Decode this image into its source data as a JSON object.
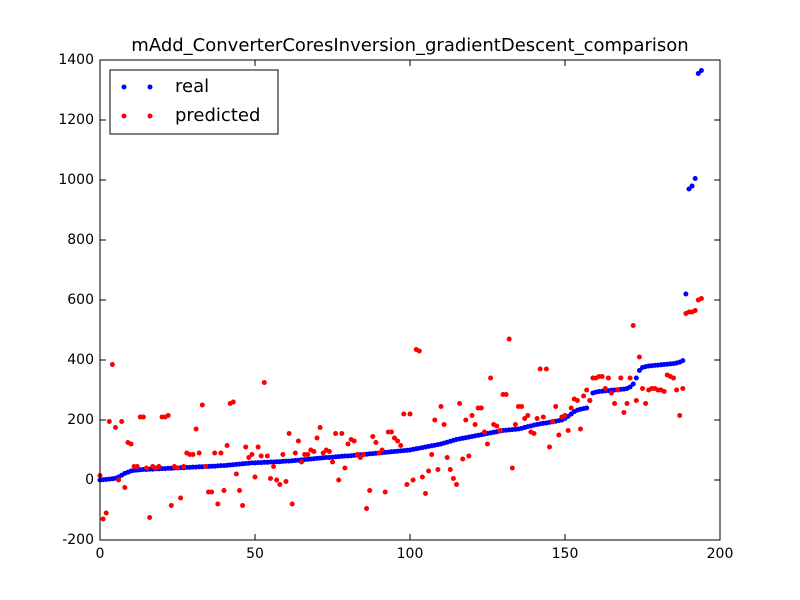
{
  "chart_data": {
    "type": "scatter",
    "title": "mAdd_ConverterCoresInversion_gradientDescent_comparison",
    "x": [
      0,
      1,
      2,
      3,
      4,
      5,
      6,
      7,
      8,
      9,
      10,
      11,
      12,
      13,
      14,
      15,
      16,
      17,
      18,
      19,
      20,
      21,
      22,
      23,
      24,
      25,
      26,
      27,
      28,
      29,
      30,
      31,
      32,
      33,
      34,
      35,
      36,
      37,
      38,
      39,
      40,
      41,
      42,
      43,
      44,
      45,
      46,
      47,
      48,
      49,
      50,
      51,
      52,
      53,
      54,
      55,
      56,
      57,
      58,
      59,
      60,
      61,
      62,
      63,
      64,
      65,
      66,
      67,
      68,
      69,
      70,
      71,
      72,
      73,
      74,
      75,
      76,
      77,
      78,
      79,
      80,
      81,
      82,
      83,
      84,
      85,
      86,
      87,
      88,
      89,
      90,
      91,
      92,
      93,
      94,
      95,
      96,
      97,
      98,
      99,
      100,
      101,
      102,
      103,
      104,
      105,
      106,
      107,
      108,
      109,
      110,
      111,
      112,
      113,
      114,
      115,
      116,
      117,
      118,
      119,
      120,
      121,
      122,
      123,
      124,
      125,
      126,
      127,
      128,
      129,
      130,
      131,
      132,
      133,
      134,
      135,
      136,
      137,
      138,
      139,
      140,
      141,
      142,
      143,
      144,
      145,
      146,
      147,
      148,
      149,
      150,
      151,
      152,
      153,
      154,
      155,
      156,
      157,
      158,
      159,
      160,
      161,
      162,
      163,
      164,
      165,
      166,
      167,
      168,
      169,
      170,
      171,
      172,
      173,
      174,
      175,
      176,
      177,
      178,
      179,
      180,
      181,
      182,
      183,
      184,
      185,
      186,
      187,
      188,
      189,
      190,
      191,
      192,
      193,
      194
    ],
    "series": [
      {
        "name": "real",
        "color": "#0000ff",
        "values": [
          0,
          1,
          2,
          3,
          4,
          6,
          10,
          16,
          22,
          26,
          30,
          32,
          33,
          34,
          35,
          35,
          36,
          36,
          37,
          37,
          38,
          38,
          39,
          39,
          40,
          40,
          41,
          41,
          42,
          42,
          43,
          43,
          44,
          44,
          45,
          45,
          46,
          46,
          47,
          48,
          48,
          49,
          50,
          51,
          52,
          53,
          54,
          55,
          56,
          57,
          57,
          58,
          58,
          59,
          59,
          60,
          60,
          61,
          61,
          62,
          63,
          63,
          64,
          65,
          66,
          67,
          68,
          69,
          70,
          71,
          72,
          73,
          74,
          75,
          75,
          76,
          77,
          78,
          79,
          80,
          80,
          81,
          82,
          83,
          84,
          85,
          86,
          87,
          88,
          89,
          90,
          91,
          92,
          93,
          94,
          95,
          96,
          97,
          98,
          99,
          100,
          102,
          104,
          106,
          108,
          110,
          112,
          114,
          116,
          118,
          120,
          123,
          126,
          129,
          132,
          135,
          137,
          139,
          141,
          143,
          145,
          147,
          149,
          151,
          153,
          155,
          157,
          159,
          161,
          163,
          165,
          166,
          167,
          168,
          169,
          170,
          172,
          175,
          178,
          180,
          183,
          185,
          187,
          189,
          190,
          192,
          194,
          196,
          198,
          200,
          205,
          212,
          220,
          228,
          233,
          236,
          238,
          240,
          265,
          290,
          293,
          295,
          296,
          297,
          298,
          299,
          300,
          301,
          302,
          303,
          305,
          310,
          320,
          340,
          365,
          375,
          378,
          380,
          381,
          382,
          383,
          384,
          385,
          386,
          387,
          388,
          390,
          393,
          398,
          620,
          970,
          980,
          1005,
          1355,
          1365
        ]
      },
      {
        "name": "predicted",
        "color": "#ff0000",
        "values": [
          15,
          -130,
          -110,
          195,
          385,
          175,
          0,
          195,
          -25,
          125,
          120,
          45,
          45,
          210,
          210,
          40,
          -125,
          45,
          40,
          45,
          210,
          210,
          215,
          -85,
          45,
          40,
          -60,
          45,
          90,
          85,
          85,
          170,
          90,
          250,
          45,
          -40,
          -40,
          90,
          -80,
          90,
          -35,
          115,
          255,
          260,
          20,
          -35,
          -85,
          110,
          75,
          85,
          10,
          110,
          80,
          325,
          80,
          5,
          45,
          0,
          -15,
          85,
          -5,
          155,
          -80,
          90,
          130,
          60,
          85,
          85,
          100,
          95,
          140,
          175,
          90,
          100,
          95,
          60,
          155,
          0,
          155,
          40,
          120,
          135,
          130,
          85,
          75,
          85,
          -95,
          -35,
          145,
          125,
          90,
          100,
          -40,
          160,
          160,
          140,
          130,
          115,
          220,
          -15,
          220,
          0,
          435,
          430,
          10,
          -45,
          30,
          85,
          200,
          35,
          245,
          185,
          75,
          35,
          5,
          -15,
          255,
          70,
          200,
          80,
          215,
          185,
          240,
          240,
          160,
          120,
          340,
          185,
          180,
          165,
          285,
          285,
          470,
          40,
          185,
          245,
          245,
          205,
          215,
          160,
          155,
          205,
          370,
          210,
          370,
          110,
          195,
          245,
          150,
          210,
          215,
          165,
          240,
          270,
          265,
          170,
          280,
          300,
          265,
          340,
          340,
          345,
          345,
          305,
          340,
          290,
          255,
          300,
          340,
          225,
          255,
          340,
          515,
          265,
          410,
          305,
          255,
          300,
          305,
          305,
          300,
          300,
          295,
          350,
          345,
          340,
          300,
          215,
          305,
          555,
          560,
          560,
          565,
          600,
          605
        ]
      }
    ],
    "xlim": [
      0,
      200
    ],
    "xticks": [
      0,
      50,
      100,
      150,
      200
    ],
    "ylim": [
      -200,
      1400
    ],
    "yticks": [
      -200,
      0,
      200,
      400,
      600,
      800,
      1000,
      1200,
      1400
    ],
    "legend": "upper left"
  }
}
